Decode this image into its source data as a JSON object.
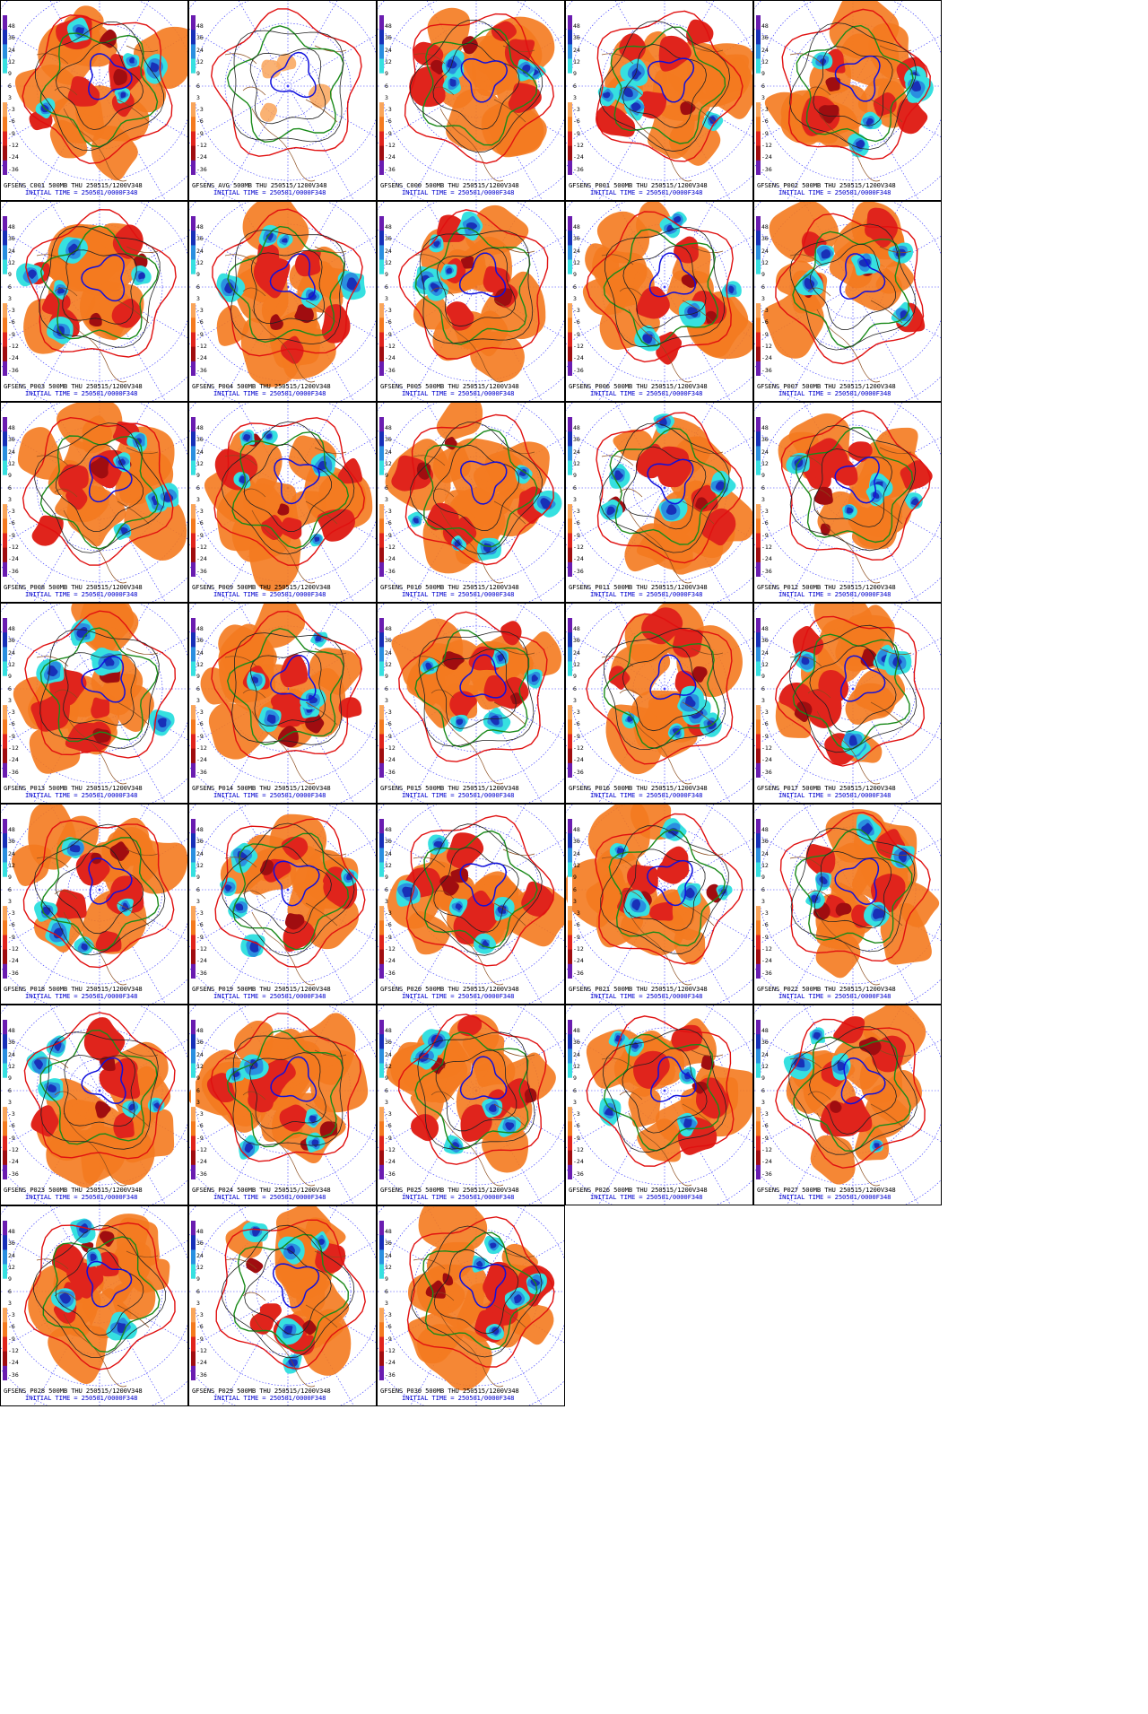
{
  "caption_line2": "INITIAL TIME = 250501/0000F348",
  "colorbar_ticks": [
    "48",
    "36",
    "24",
    "12",
    "9",
    "6",
    "3",
    "-3",
    "-6",
    "-9",
    "-12",
    "-24",
    "-36"
  ],
  "panels": [
    {
      "title": "GFSENS C001 500MB THU 250515/1200V348"
    },
    {
      "title": "GFSENS AVG 500MB THU 250515/1200V348"
    },
    {
      "title": "GFSENS C000 500MB THU 250515/1200V348"
    },
    {
      "title": "GFSENS P001 500MB THU 250515/1200V348"
    },
    {
      "title": "GFSENS P002 500MB THU 250515/1200V348"
    },
    {
      "title": "GFSENS P003 500MB THU 250515/1200V348"
    },
    {
      "title": "GFSENS P004 500MB THU 250515/1200V348"
    },
    {
      "title": "GFSENS P005 500MB THU 250515/1200V348"
    },
    {
      "title": "GFSENS P006 500MB THU 250515/1200V348"
    },
    {
      "title": "GFSENS P007 500MB THU 250515/1200V348"
    },
    {
      "title": "GFSENS P008 500MB THU 250515/1200V348"
    },
    {
      "title": "GFSENS P009 500MB THU 250515/1200V348"
    },
    {
      "title": "GFSENS P010 500MB THU 250515/1200V348"
    },
    {
      "title": "GFSENS P011 500MB THU 250515/1200V348"
    },
    {
      "title": "GFSENS P012 500MB THU 250515/1200V348"
    },
    {
      "title": "GFSENS P013 500MB THU 250515/1200V348"
    },
    {
      "title": "GFSENS P014 500MB THU 250515/1200V348"
    },
    {
      "title": "GFSENS P015 500MB THU 250515/1200V348"
    },
    {
      "title": "GFSENS P016 500MB THU 250515/1200V348"
    },
    {
      "title": "GFSENS P017 500MB THU 250515/1200V348"
    },
    {
      "title": "GFSENS P018 500MB THU 250515/1200V348"
    },
    {
      "title": "GFSENS P019 500MB THU 250515/1200V348"
    },
    {
      "title": "GFSENS P020 500MB THU 250515/1200V348"
    },
    {
      "title": "GFSENS P021 500MB THU 250515/1200V348"
    },
    {
      "title": "GFSENS P022 500MB THU 250515/1200V348"
    },
    {
      "title": "GFSENS P023 500MB THU 250515/1200V348"
    },
    {
      "title": "GFSENS P024 500MB THU 250515/1200V348"
    },
    {
      "title": "GFSENS P025 500MB THU 250515/1200V348"
    },
    {
      "title": "GFSENS P026 500MB THU 250515/1200V348"
    },
    {
      "title": "GFSENS P027 500MB THU 250515/1200V348"
    },
    {
      "title": "GFSENS P028 500MB THU 250515/1200V348"
    },
    {
      "title": "GFSENS P029 500MB THU 250515/1200V348"
    },
    {
      "title": "GFSENS P030 500MB THU 250515/1200V348"
    }
  ]
}
